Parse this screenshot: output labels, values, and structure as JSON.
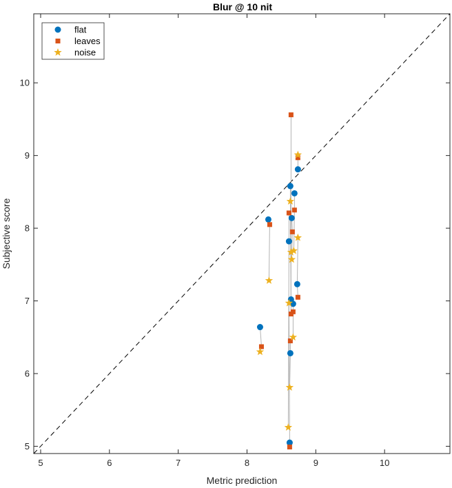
{
  "chart_data": {
    "type": "scatter",
    "title": "Blur @ 10 nit",
    "xlabel": "Metric prediction",
    "ylabel": "Subjective score",
    "xlim": [
      4.9,
      10.95
    ],
    "ylim": [
      4.9,
      10.95
    ],
    "xticks": [
      5,
      6,
      7,
      8,
      9,
      10
    ],
    "yticks": [
      5,
      6,
      7,
      8,
      9,
      10
    ],
    "grid": false,
    "legend_position": "top-left",
    "diagonal": "identity dashed line",
    "series": [
      {
        "name": "flat",
        "marker": "circle",
        "color": "#0072BD",
        "points": [
          [
            8.19,
            6.64
          ],
          [
            8.31,
            8.12
          ],
          [
            8.61,
            7.82
          ],
          [
            8.62,
            5.05
          ],
          [
            8.63,
            6.28
          ],
          [
            8.63,
            8.58
          ],
          [
            8.64,
            7.02
          ],
          [
            8.65,
            8.14
          ],
          [
            8.67,
            6.96
          ],
          [
            8.69,
            8.48
          ],
          [
            8.73,
            7.23
          ],
          [
            8.74,
            8.81
          ]
        ]
      },
      {
        "name": "leaves",
        "marker": "square",
        "color": "#D95319",
        "points": [
          [
            8.21,
            6.37
          ],
          [
            8.33,
            8.05
          ],
          [
            8.61,
            8.21
          ],
          [
            8.62,
            4.99
          ],
          [
            8.63,
            6.45
          ],
          [
            8.64,
            6.82
          ],
          [
            8.64,
            9.56
          ],
          [
            8.66,
            7.95
          ],
          [
            8.67,
            6.85
          ],
          [
            8.69,
            8.25
          ],
          [
            8.74,
            7.05
          ],
          [
            8.74,
            8.97
          ]
        ]
      },
      {
        "name": "noise",
        "marker": "star",
        "color": "#EDB120",
        "points": [
          [
            8.19,
            6.3
          ],
          [
            8.32,
            7.28
          ],
          [
            8.6,
            5.26
          ],
          [
            8.61,
            6.97
          ],
          [
            8.62,
            5.81
          ],
          [
            8.63,
            8.37
          ],
          [
            8.64,
            7.67
          ],
          [
            8.65,
            7.57
          ],
          [
            8.67,
            6.5
          ],
          [
            8.68,
            7.69
          ],
          [
            8.74,
            7.87
          ],
          [
            8.74,
            9.01
          ]
        ]
      }
    ],
    "connectors_color": "#b3b3b3"
  }
}
